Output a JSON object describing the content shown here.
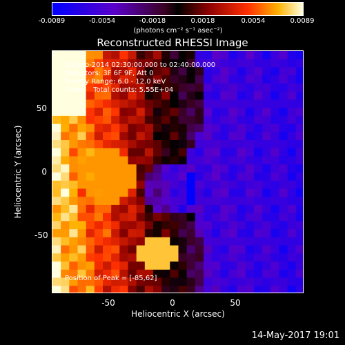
{
  "chart_data": {
    "type": "heatmap",
    "title": "Reconstructed RHESSI Image",
    "xlabel": "Heliocentric X (arcsec)",
    "ylabel": "Heliocentric Y (arcsec)",
    "xlim": [
      -95,
      95
    ],
    "ylim": [
      -95,
      95
    ],
    "x_ticks": [
      "-50",
      "0",
      "50"
    ],
    "y_ticks": [
      "50",
      "0",
      "-50"
    ],
    "colorbar": {
      "ticks": [
        "-0.0089",
        "-0.0054",
        "-0.0018",
        "0.0018",
        "0.0054",
        "0.0089"
      ],
      "unit_label": "(photons cm⁻² s⁻¹ asec⁻²)",
      "range": [
        -0.0089,
        0.0089
      ]
    },
    "annotations": {
      "time_range": "23-Sep-2014 02:30:00.000 to 02:40:00.000",
      "detectors": "Detectors: 3F 6F 9F, Att 0",
      "energy_range": "Energy Range: 6.0 - 12.0 keV",
      "counts": "Clean    Total counts: 5.55E+04",
      "peak": "Position of Peak = [-85,62]"
    },
    "peak": [
      -85,
      62
    ],
    "footer_date": "14-May-2017 19:01"
  }
}
